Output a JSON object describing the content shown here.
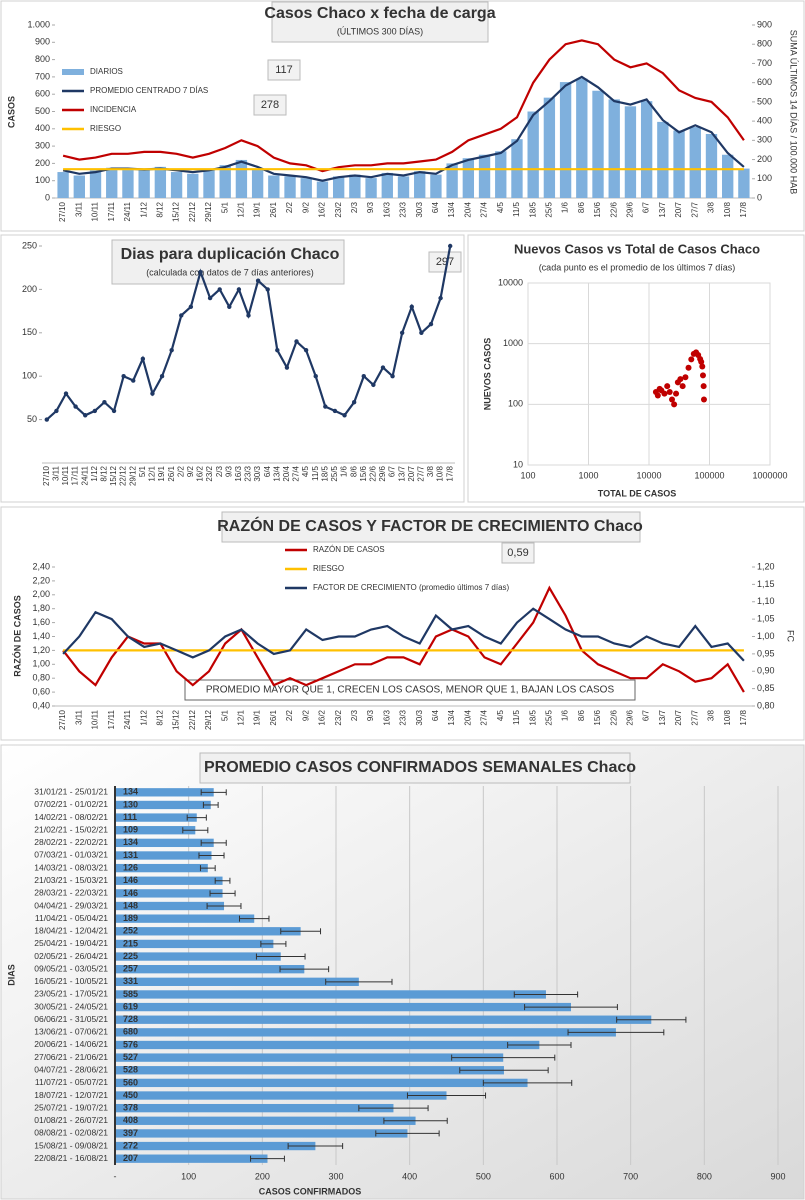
{
  "chart_data": [
    {
      "type": "combo",
      "title": "Casos Chaco x fecha de carga",
      "subtitle": "(ÚLTIMOS 300 DÍAS)",
      "ylabel": "CASOS",
      "y2label": "SUMA ÚLTIMOS 14 DÍAS / 100.000 HAB",
      "categories": [
        "27/10",
        "3/11",
        "10/11",
        "17/11",
        "24/11",
        "1/12",
        "8/12",
        "15/12",
        "22/12",
        "29/12",
        "5/1",
        "12/1",
        "19/1",
        "26/1",
        "2/2",
        "9/2",
        "16/2",
        "23/2",
        "2/3",
        "9/3",
        "16/3",
        "23/3",
        "30/3",
        "6/4",
        "13/4",
        "20/4",
        "27/4",
        "4/5",
        "11/5",
        "18/5",
        "25/5",
        "1/6",
        "8/6",
        "15/6",
        "22/6",
        "29/6",
        "6/7",
        "13/7",
        "20/7",
        "27/7",
        "3/8",
        "10/8",
        "17/8"
      ],
      "series": [
        {
          "name": "DIARIOS",
          "kind": "bar",
          "color": "#7fb0dd",
          "values": [
            150,
            130,
            160,
            175,
            165,
            170,
            180,
            150,
            140,
            170,
            190,
            220,
            170,
            130,
            125,
            115,
            95,
            125,
            135,
            115,
            145,
            125,
            155,
            135,
            200,
            230,
            250,
            270,
            340,
            500,
            580,
            670,
            690,
            620,
            570,
            530,
            560,
            440,
            390,
            410,
            370,
            250,
            170
          ]
        },
        {
          "name": "PROMEDIO CENTRADO 7 DÍAS",
          "kind": "line",
          "color": "#1f3864",
          "values": [
            160,
            140,
            150,
            170,
            170,
            165,
            170,
            160,
            150,
            160,
            180,
            210,
            180,
            140,
            130,
            120,
            100,
            120,
            130,
            120,
            140,
            130,
            150,
            140,
            190,
            220,
            240,
            260,
            330,
            480,
            560,
            650,
            700,
            640,
            560,
            540,
            570,
            450,
            380,
            420,
            380,
            260,
            180
          ]
        },
        {
          "name": "INCIDENCIA",
          "kind": "line",
          "axis": "y2",
          "color": "#c00000",
          "values": [
            220,
            200,
            210,
            230,
            230,
            240,
            240,
            230,
            210,
            230,
            260,
            300,
            270,
            210,
            180,
            170,
            140,
            160,
            170,
            170,
            180,
            180,
            190,
            200,
            240,
            300,
            330,
            360,
            420,
            600,
            720,
            800,
            820,
            800,
            720,
            680,
            700,
            650,
            560,
            520,
            500,
            420,
            300
          ]
        },
        {
          "name": "RIESGO",
          "kind": "line",
          "axis": "y2",
          "color": "#ffc000",
          "values": [
            150,
            150,
            150,
            150,
            150,
            150,
            150,
            150,
            150,
            150,
            150,
            150,
            150,
            150,
            150,
            150,
            150,
            150,
            150,
            150,
            150,
            150,
            150,
            150,
            150,
            150,
            150,
            150,
            150,
            150,
            150,
            150,
            150,
            150,
            150,
            150,
            150,
            150,
            150,
            150,
            150,
            150,
            150
          ]
        }
      ],
      "ylim": [
        0,
        1000
      ],
      "yticks": [
        0,
        100,
        200,
        300,
        400,
        500,
        600,
        700,
        800,
        900,
        {
          "value": 1000,
          "label": "1.000"
        }
      ],
      "y2lim": [
        0,
        900
      ],
      "y2ticks": [
        0,
        100,
        200,
        300,
        400,
        500,
        600,
        700,
        800,
        900
      ],
      "annotations": [
        117,
        278
      ],
      "grid": false
    },
    {
      "type": "line",
      "title": "Dias para duplicación Chaco",
      "subtitle": "(calculada con datos de 7 días anteriores)",
      "categories": [
        "27/10",
        "3/11",
        "10/11",
        "17/11",
        "24/11",
        "1/12",
        "8/12",
        "15/12",
        "22/12",
        "29/12",
        "5/1",
        "12/1",
        "19/1",
        "26/1",
        "2/2",
        "9/2",
        "16/2",
        "23/2",
        "2/3",
        "9/3",
        "16/3",
        "23/3",
        "30/3",
        "6/4",
        "13/4",
        "20/4",
        "27/4",
        "4/5",
        "11/5",
        "18/5",
        "25/5",
        "1/6",
        "8/6",
        "15/6",
        "22/6",
        "29/6",
        "6/7",
        "13/7",
        "20/7",
        "27/7",
        "3/8",
        "10/8",
        "17/8"
      ],
      "values": [
        50,
        60,
        80,
        65,
        55,
        60,
        70,
        60,
        100,
        95,
        120,
        80,
        100,
        130,
        170,
        180,
        220,
        190,
        200,
        180,
        200,
        170,
        210,
        200,
        130,
        110,
        140,
        130,
        100,
        65,
        60,
        55,
        70,
        100,
        90,
        110,
        100,
        150,
        180,
        150,
        160,
        190,
        250
      ],
      "color": "#1f3864",
      "markers": true,
      "ylim": [
        0,
        250
      ],
      "yticks": [
        50,
        100,
        150,
        200,
        250
      ],
      "annotations": [
        297
      ],
      "grid": false
    },
    {
      "type": "scatter",
      "title": "Nuevos Casos vs Total de Casos Chaco",
      "subtitle": "(cada punto es el promedio de los últimos 7 días)",
      "xlabel": "TOTAL DE CASOS",
      "ylabel": "NUEVOS CASOS",
      "x": [
        13000,
        14000,
        15000,
        16000,
        18000,
        20000,
        22000,
        24000,
        26000,
        28000,
        30000,
        33000,
        36000,
        40000,
        45000,
        50000,
        55000,
        60000,
        65000,
        70000,
        73000,
        76000,
        78000,
        80000,
        81000
      ],
      "values": [
        160,
        140,
        180,
        170,
        150,
        200,
        160,
        120,
        100,
        150,
        230,
        260,
        200,
        280,
        400,
        550,
        680,
        720,
        650,
        560,
        500,
        420,
        300,
        200,
        120
      ],
      "color": "#c00000",
      "xlog": true,
      "ylog": true,
      "xlim": [
        100,
        1000000
      ],
      "xticks": [
        100,
        1000,
        10000,
        100000,
        1000000
      ],
      "ylim": [
        10,
        10000
      ],
      "yticks": [
        10,
        100,
        1000,
        10000
      ],
      "grid": true
    },
    {
      "type": "combo",
      "title": "RAZÓN DE CASOS Y FACTOR DE CRECIMIENTO Chaco",
      "ylabel": "RAZÓN DE CASOS",
      "y2label": "FC",
      "categories": [
        "27/10",
        "3/11",
        "10/11",
        "17/11",
        "24/11",
        "1/12",
        "8/12",
        "15/12",
        "22/12",
        "29/12",
        "5/1",
        "12/1",
        "19/1",
        "26/1",
        "2/2",
        "9/2",
        "16/2",
        "23/2",
        "2/3",
        "9/3",
        "16/3",
        "23/3",
        "30/3",
        "6/4",
        "13/4",
        "20/4",
        "27/4",
        "4/5",
        "11/5",
        "18/5",
        "25/5",
        "1/6",
        "8/6",
        "15/6",
        "22/6",
        "29/6",
        "6/7",
        "13/7",
        "20/7",
        "27/7",
        "3/8",
        "10/8",
        "17/8"
      ],
      "series": [
        {
          "name": "RAZÓN DE CASOS",
          "kind": "line",
          "color": "#c00000",
          "values": [
            1.2,
            0.9,
            0.7,
            1.1,
            1.4,
            1.3,
            1.3,
            0.9,
            0.7,
            0.9,
            1.3,
            1.5,
            1.1,
            0.7,
            0.8,
            0.7,
            0.8,
            0.9,
            1.0,
            1.0,
            1.1,
            1.1,
            1.0,
            1.4,
            1.5,
            1.4,
            1.1,
            1.0,
            1.3,
            1.6,
            2.1,
            1.7,
            1.2,
            1.0,
            0.9,
            0.8,
            0.8,
            1.0,
            0.9,
            0.75,
            0.8,
            1.0,
            0.6
          ]
        },
        {
          "name": "RIESGO",
          "kind": "line",
          "color": "#ffc000",
          "values": [
            1.2,
            1.2,
            1.2,
            1.2,
            1.2,
            1.2,
            1.2,
            1.2,
            1.2,
            1.2,
            1.2,
            1.2,
            1.2,
            1.2,
            1.2,
            1.2,
            1.2,
            1.2,
            1.2,
            1.2,
            1.2,
            1.2,
            1.2,
            1.2,
            1.2,
            1.2,
            1.2,
            1.2,
            1.2,
            1.2,
            1.2,
            1.2,
            1.2,
            1.2,
            1.2,
            1.2,
            1.2,
            1.2,
            1.2,
            1.2,
            1.2,
            1.2,
            1.2
          ]
        },
        {
          "name": "FACTOR DE CRECIMIENTO (promedio últimos 7 días)",
          "kind": "line",
          "axis": "y2",
          "color": "#1f3864",
          "values": [
            0.95,
            1.0,
            1.07,
            1.05,
            1.0,
            0.97,
            0.98,
            0.96,
            0.94,
            0.96,
            1.0,
            1.02,
            0.98,
            0.95,
            0.96,
            1.02,
            0.99,
            1.0,
            1.0,
            1.02,
            1.03,
            1.0,
            0.98,
            1.06,
            1.02,
            1.03,
            1.0,
            0.98,
            1.04,
            1.08,
            1.05,
            1.02,
            1.0,
            1.0,
            0.98,
            0.97,
            1.0,
            0.98,
            0.97,
            1.03,
            0.97,
            0.98,
            0.93
          ]
        }
      ],
      "ylim": [
        0.4,
        2.4
      ],
      "yticks": [
        {
          "value": 0.4,
          "label": "0,40"
        },
        {
          "value": 0.6,
          "label": "0,60"
        },
        {
          "value": 0.8,
          "label": "0,80"
        },
        {
          "value": 1.0,
          "label": "1,00"
        },
        {
          "value": 1.2,
          "label": "1,20"
        },
        {
          "value": 1.4,
          "label": "1,40"
        },
        {
          "value": 1.6,
          "label": "1,60"
        },
        {
          "value": 1.8,
          "label": "1,80"
        },
        {
          "value": 2.0,
          "label": "2,00"
        },
        {
          "value": 2.2,
          "label": "2,20"
        },
        {
          "value": 2.4,
          "label": "2,40"
        }
      ],
      "y2lim": [
        0.8,
        1.2
      ],
      "y2ticks": [
        {
          "value": 0.8,
          "label": "0,80"
        },
        {
          "value": 0.85,
          "label": "0,85"
        },
        {
          "value": 0.9,
          "label": "0,90"
        },
        {
          "value": 0.95,
          "label": "0,95"
        },
        {
          "value": 1.0,
          "label": "1,00"
        },
        {
          "value": 1.05,
          "label": "1,05"
        },
        {
          "value": 1.1,
          "label": "1,10"
        },
        {
          "value": 1.15,
          "label": "1,15"
        },
        {
          "value": 1.2,
          "label": "1,20"
        }
      ],
      "annotations": [
        "0,59"
      ],
      "note": "PROMEDIO MAYOR QUE 1, CRECEN LOS CASOS, MENOR QUE 1, BAJAN LOS CASOS",
      "grid": false
    },
    {
      "type": "barh",
      "title": "PROMEDIO CASOS CONFIRMADOS SEMANALES Chaco",
      "xlabel": "CASOS CONFIRMADOS",
      "ylabel": "DIAS",
      "categories": [
        "31/01/21 - 25/01/21",
        "07/02/21 - 01/02/21",
        "14/02/21 - 08/02/21",
        "21/02/21 - 15/02/21",
        "28/02/21 - 22/02/21",
        "07/03/21 - 01/03/21",
        "14/03/21 - 08/03/21",
        "21/03/21 - 15/03/21",
        "28/03/21 - 22/03/21",
        "04/04/21 - 29/03/21",
        "11/04/21 - 05/04/21",
        "18/04/21 - 12/04/21",
        "25/04/21 - 19/04/21",
        "02/05/21 - 26/04/21",
        "09/05/21 - 03/05/21",
        "16/05/21 - 10/05/21",
        "23/05/21 - 17/05/21",
        "30/05/21 - 24/05/21",
        "06/06/21 - 31/05/21",
        "13/06/21 - 07/06/21",
        "20/06/21 - 14/06/21",
        "27/06/21 - 21/06/21",
        "04/07/21 - 28/06/21",
        "11/07/21 - 05/07/21",
        "18/07/21 - 12/07/21",
        "25/07/21 - 19/07/21",
        "01/08/21 - 26/07/21",
        "08/08/21 - 02/08/21",
        "15/08/21 - 09/08/21",
        "22/08/21 - 16/08/21"
      ],
      "values": [
        134,
        130,
        111,
        109,
        134,
        131,
        126,
        146,
        146,
        148,
        189,
        252,
        215,
        225,
        257,
        331,
        585,
        619,
        728,
        680,
        576,
        527,
        528,
        560,
        450,
        378,
        408,
        397,
        272,
        207
      ],
      "errors": [
        17,
        10,
        13,
        17,
        17,
        17,
        10,
        10,
        17,
        23,
        20,
        27,
        17,
        33,
        33,
        45,
        43,
        63,
        47,
        65,
        43,
        70,
        60,
        60,
        53,
        47,
        43,
        43,
        37,
        23
      ],
      "color": "#5b9bd5",
      "xlim": [
        0,
        900
      ],
      "xticks": [
        {
          "value": 0,
          "label": "-"
        },
        100,
        200,
        300,
        400,
        500,
        600,
        700,
        800,
        900
      ],
      "grid": true
    }
  ]
}
